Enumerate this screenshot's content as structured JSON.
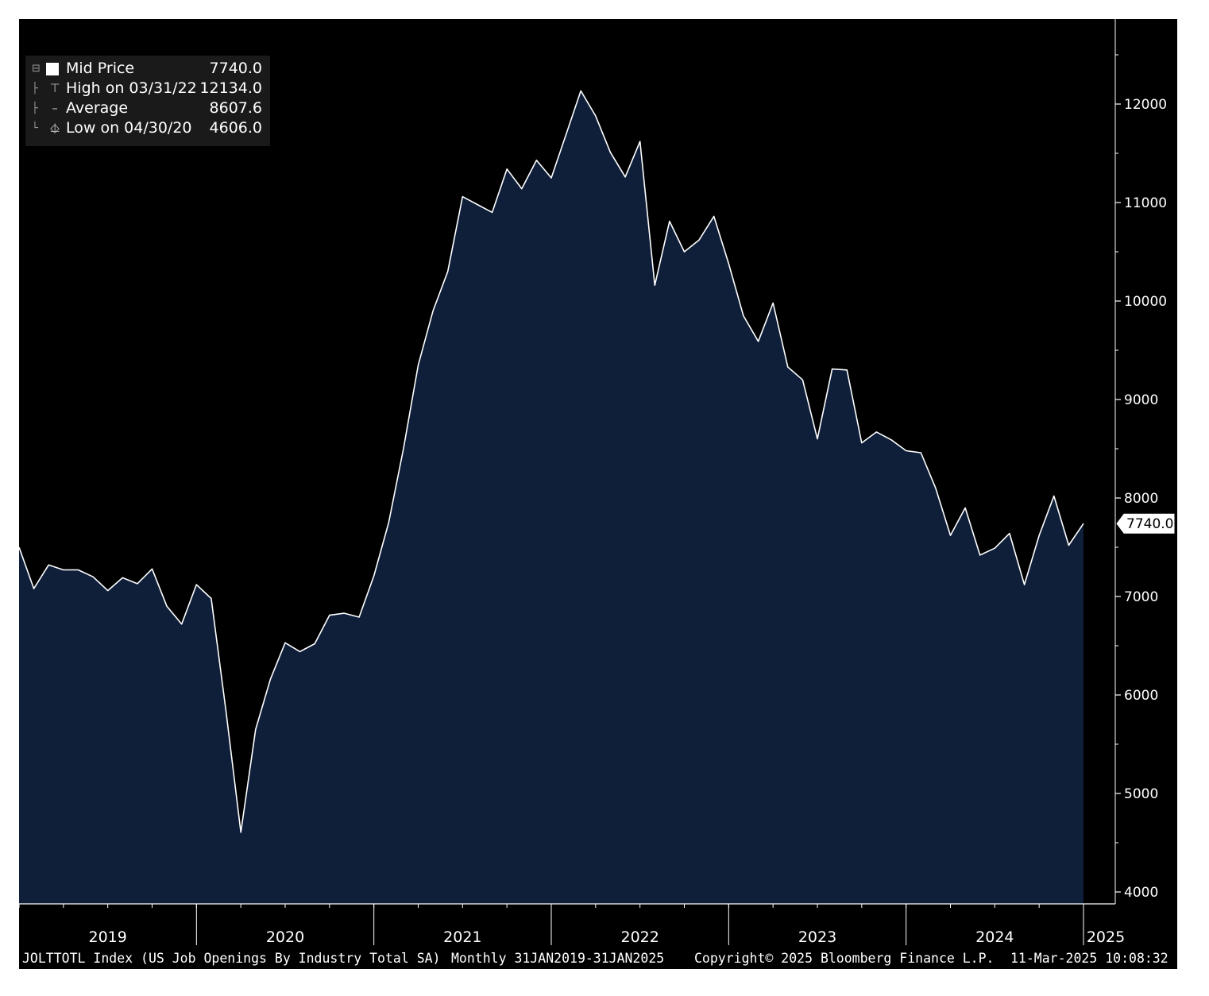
{
  "legend": {
    "mid_price_label": "Mid Price",
    "mid_price_value": "7740.0",
    "high_label": "High on 03/31/22",
    "high_value": "12134.0",
    "average_label": "Average",
    "average_value": "8607.6",
    "low_label": "Low on 04/30/20",
    "low_value": "4606.0"
  },
  "footer": {
    "security": "JOLTTOTL Index (US Job Openings By Industry Total SA)",
    "range": "Monthly 31JAN2019-31JAN2025",
    "copyright": "Copyright© 2025 Bloomberg Finance L.P.",
    "timestamp": "11-Mar-2025 10:08:32"
  },
  "colors": {
    "background": "#000000",
    "area_fill": "#0f1f3a",
    "line": "#ffffff",
    "axis": "#ffffff"
  },
  "chart_data": {
    "type": "area",
    "frequency": "Monthly",
    "last_value_label": "7740.0",
    "y_axis_position": "right",
    "ylim": [
      4000,
      12500
    ],
    "y_ticks": [
      4000,
      5000,
      6000,
      7000,
      8000,
      9000,
      10000,
      11000,
      12000
    ],
    "y_tick_labels": [
      "4000",
      "5000",
      "6000",
      "7000",
      "8000",
      "9000",
      "10000",
      "11000",
      "12000"
    ],
    "x_tick_labels": [
      "2019",
      "2020",
      "2021",
      "2022",
      "2023",
      "2024",
      "2025"
    ],
    "series": [
      {
        "name": "Mid Price",
        "x": [
          "2019-01",
          "2019-02",
          "2019-03",
          "2019-04",
          "2019-05",
          "2019-06",
          "2019-07",
          "2019-08",
          "2019-09",
          "2019-10",
          "2019-11",
          "2019-12",
          "2020-01",
          "2020-02",
          "2020-03",
          "2020-04",
          "2020-05",
          "2020-06",
          "2020-07",
          "2020-08",
          "2020-09",
          "2020-10",
          "2020-11",
          "2020-12",
          "2021-01",
          "2021-02",
          "2021-03",
          "2021-04",
          "2021-05",
          "2021-06",
          "2021-07",
          "2021-08",
          "2021-09",
          "2021-10",
          "2021-11",
          "2021-12",
          "2022-01",
          "2022-02",
          "2022-03",
          "2022-04",
          "2022-05",
          "2022-06",
          "2022-07",
          "2022-08",
          "2022-09",
          "2022-10",
          "2022-11",
          "2022-12",
          "2023-01",
          "2023-02",
          "2023-03",
          "2023-04",
          "2023-05",
          "2023-06",
          "2023-07",
          "2023-08",
          "2023-09",
          "2023-10",
          "2023-11",
          "2023-12",
          "2024-01",
          "2024-02",
          "2024-03",
          "2024-04",
          "2024-05",
          "2024-06",
          "2024-07",
          "2024-08",
          "2024-09",
          "2024-10",
          "2024-11",
          "2024-12",
          "2025-01"
        ],
        "values": [
          7500,
          7080,
          7320,
          7270,
          7270,
          7200,
          7060,
          7190,
          7130,
          7280,
          6900,
          6720,
          7120,
          6980,
          5830,
          4606,
          5650,
          6160,
          6530,
          6440,
          6520,
          6810,
          6830,
          6790,
          7210,
          7750,
          8500,
          9350,
          9900,
          10300,
          11060,
          10980,
          10900,
          11340,
          11140,
          11430,
          11250,
          11690,
          12134,
          11880,
          11510,
          11260,
          11620,
          10160,
          10810,
          10500,
          10620,
          10860,
          10380,
          9850,
          9590,
          9980,
          9330,
          9200,
          8600,
          9310,
          9300,
          8560,
          8670,
          8590,
          8480,
          8460,
          8100,
          7620,
          7900,
          7420,
          7490,
          7640,
          7120,
          7620,
          8020,
          7520,
          7740
        ]
      }
    ]
  }
}
